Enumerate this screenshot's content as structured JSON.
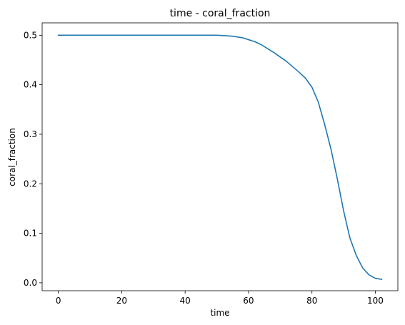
{
  "chart_data": {
    "type": "line",
    "title": "time - coral_fraction",
    "xlabel": "time",
    "ylabel": "coral_fraction",
    "xlim": [
      -5.1,
      107.1
    ],
    "ylim": [
      -0.016,
      0.525
    ],
    "xticks": [
      0,
      20,
      40,
      60,
      80,
      100
    ],
    "xtick_labels": [
      "0",
      "20",
      "40",
      "60",
      "80",
      "100"
    ],
    "yticks": [
      0.0,
      0.1,
      0.2,
      0.3,
      0.4,
      0.5
    ],
    "ytick_labels": [
      "0.0",
      "0.1",
      "0.2",
      "0.3",
      "0.4",
      "0.5"
    ],
    "grid": false,
    "legend": "none",
    "series": [
      {
        "color": "#1f77b4",
        "x": [
          0,
          10,
          20,
          30,
          40,
          50,
          53,
          55,
          58,
          60,
          62,
          64,
          66,
          68,
          70,
          72,
          74,
          76,
          78,
          80,
          82,
          84,
          86,
          88,
          90,
          92,
          94,
          96,
          98,
          100,
          102
        ],
        "y": [
          0.5,
          0.5,
          0.5,
          0.5,
          0.5,
          0.5,
          0.499,
          0.498,
          0.495,
          0.491,
          0.487,
          0.481,
          0.473,
          0.465,
          0.456,
          0.447,
          0.436,
          0.425,
          0.413,
          0.395,
          0.365,
          0.32,
          0.27,
          0.21,
          0.145,
          0.09,
          0.055,
          0.03,
          0.016,
          0.009,
          0.007
        ]
      }
    ]
  }
}
